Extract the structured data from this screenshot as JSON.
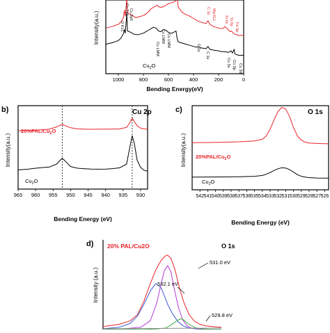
{
  "figure": {
    "panel_b_letter": "b)",
    "panel_c_letter": "c)",
    "panel_d_letter": "d)"
  },
  "chart_data": [
    {
      "panel": "a",
      "type": "line",
      "xlabel": "Bending Energy(eV)",
      "ylabel": "Intensity(a.u.)",
      "xlim": [
        1100,
        0
      ],
      "xticks": [
        1000,
        800,
        600,
        400,
        200,
        0
      ],
      "x_reversed": true,
      "series": [
        {
          "name": "",
          "color": "#e8232a",
          "x": [
            1100,
            1050,
            1000,
            980,
            960,
            952,
            945,
            932,
            928,
            900,
            880,
            860,
            840,
            800,
            780,
            760,
            740,
            720,
            700,
            690,
            680,
            660,
            640,
            620,
            600,
            580,
            560,
            540,
            531,
            525,
            520,
            500,
            480,
            460,
            440,
            420,
            400,
            380,
            360,
            340,
            300,
            285,
            270,
            240,
            200,
            180,
            160,
            150,
            130,
            120,
            110,
            100,
            80,
            75,
            60,
            40,
            20,
            10,
            0
          ],
          "y": [
            0.62,
            0.64,
            0.67,
            0.7,
            0.76,
            0.86,
            0.78,
            1.02,
            0.83,
            0.8,
            0.78,
            0.76,
            0.77,
            0.79,
            0.81,
            0.84,
            0.88,
            0.9,
            0.92,
            0.93,
            0.91,
            0.9,
            0.91,
            0.93,
            0.95,
            0.96,
            0.97,
            0.99,
            1.1,
            0.94,
            0.9,
            0.85,
            0.82,
            0.8,
            0.79,
            0.77,
            0.75,
            0.73,
            0.71,
            0.7,
            0.68,
            0.72,
            0.67,
            0.64,
            0.62,
            0.61,
            0.62,
            0.64,
            0.61,
            0.59,
            0.57,
            0.58,
            0.55,
            0.54,
            0.53,
            0.52,
            0.52,
            0.52,
            0.52
          ]
        },
        {
          "name": "",
          "color": "#000000",
          "x": [
            1100,
            1050,
            1000,
            980,
            960,
            952,
            945,
            932,
            928,
            900,
            880,
            860,
            840,
            800,
            780,
            760,
            740,
            720,
            700,
            690,
            680,
            660,
            640,
            620,
            600,
            580,
            570,
            560,
            540,
            531,
            525,
            520,
            500,
            480,
            460,
            440,
            420,
            400,
            380,
            360,
            340,
            300,
            285,
            270,
            240,
            200,
            180,
            160,
            120,
            100,
            90,
            76,
            70,
            60,
            40,
            20,
            10,
            0
          ],
          "y": [
            0.4,
            0.42,
            0.45,
            0.48,
            0.54,
            0.6,
            0.55,
            0.82,
            0.58,
            0.56,
            0.54,
            0.53,
            0.53,
            0.55,
            0.57,
            0.59,
            0.61,
            0.63,
            0.62,
            0.6,
            0.58,
            0.57,
            0.6,
            0.59,
            0.56,
            0.55,
            0.55,
            0.56,
            0.58,
            0.48,
            0.44,
            0.43,
            0.42,
            0.41,
            0.4,
            0.39,
            0.38,
            0.37,
            0.36,
            0.36,
            0.35,
            0.34,
            0.37,
            0.33,
            0.32,
            0.31,
            0.3,
            0.3,
            0.29,
            0.31,
            0.28,
            0.33,
            0.27,
            0.26,
            0.25,
            0.25,
            0.25,
            0.25
          ]
        }
      ],
      "annotations": {
        "red": [
          "Mg KLL",
          "C 1s",
          "Si 2s",
          "Si 2p",
          "Fe 3p"
        ],
        "black": [
          "O KLL",
          "Cu 2p1",
          "Cu 2p3",
          "Cu LMM",
          "Cu LMM",
          "Cu LMM",
          "O 1s",
          "C 1s",
          "Cu 3s",
          "Cu 3p",
          "Cu 3d"
        ]
      },
      "series_labels": [
        "Cu2O"
      ]
    },
    {
      "panel": "b",
      "type": "line",
      "title": "Cu 2p",
      "xlabel": "Bending Energy (eV)",
      "ylabel": "Intensity(a.u.)",
      "xlim": [
        965,
        928
      ],
      "xticks": [
        965,
        960,
        955,
        950,
        945,
        940,
        935,
        930
      ],
      "x_reversed": true,
      "reference_lines": [
        952.4,
        932.4
      ],
      "series_labels": [
        "20%PAL/Cu2O",
        "Cu2O"
      ],
      "series": [
        {
          "name": "20%PAL/Cu2O",
          "color": "#e8232a",
          "x": [
            965,
            962,
            960,
            958,
            956,
            954,
            953,
            952.4,
            951.5,
            950,
            948,
            946,
            944,
            942,
            940,
            938,
            936,
            934,
            933,
            932.4,
            931.8,
            931,
            930,
            929,
            928
          ],
          "y": [
            0.7,
            0.702,
            0.705,
            0.71,
            0.72,
            0.745,
            0.765,
            0.775,
            0.76,
            0.735,
            0.722,
            0.718,
            0.717,
            0.718,
            0.719,
            0.72,
            0.722,
            0.74,
            0.8,
            0.85,
            0.81,
            0.76,
            0.73,
            0.722,
            0.72
          ]
        },
        {
          "name": "Cu2O",
          "color": "#000000",
          "x": [
            965,
            962,
            960,
            958,
            956,
            954,
            953,
            952.4,
            951.5,
            950,
            948,
            946,
            944,
            942,
            940,
            938,
            936,
            934,
            933,
            932.4,
            931.8,
            931,
            930,
            929,
            928
          ],
          "y": [
            0.23,
            0.24,
            0.25,
            0.258,
            0.265,
            0.3,
            0.345,
            0.37,
            0.335,
            0.27,
            0.25,
            0.244,
            0.24,
            0.238,
            0.24,
            0.245,
            0.255,
            0.3,
            0.52,
            0.64,
            0.55,
            0.35,
            0.26,
            0.225,
            0.215
          ]
        }
      ]
    },
    {
      "panel": "c",
      "type": "line",
      "title": "O 1s",
      "xlabel": "Bending Energy (eV)",
      "ylabel": "Intensity(a.u.)",
      "xlim": [
        543,
        525.5
      ],
      "xticks": [
        542,
        541,
        540,
        539,
        538,
        537,
        536,
        535,
        534,
        533,
        532,
        531,
        530,
        529,
        528,
        527,
        526
      ],
      "x_reversed": true,
      "series_labels": [
        "20%PAL/Cu2O",
        "Cu2O"
      ],
      "series": [
        {
          "name": "20%PAL/Cu2O",
          "color": "#e8232a",
          "x": [
            543,
            541,
            539,
            537,
            535,
            534,
            533.5,
            533,
            532.5,
            532,
            531.5,
            531,
            530.5,
            530,
            529.5,
            529,
            528.5,
            528,
            527,
            526,
            525.5
          ],
          "y": [
            0.56,
            0.562,
            0.565,
            0.57,
            0.58,
            0.6,
            0.64,
            0.72,
            0.83,
            0.93,
            0.98,
            0.96,
            0.87,
            0.74,
            0.64,
            0.59,
            0.565,
            0.555,
            0.55,
            0.548,
            0.548
          ]
        },
        {
          "name": "Cu2O",
          "color": "#000000",
          "x": [
            543,
            541,
            539,
            537,
            535,
            534,
            533.5,
            533,
            532.5,
            532,
            531.5,
            531,
            530.5,
            530,
            529.5,
            529,
            528.5,
            528,
            527,
            526,
            525.5
          ],
          "y": [
            0.15,
            0.152,
            0.153,
            0.155,
            0.16,
            0.17,
            0.185,
            0.205,
            0.23,
            0.25,
            0.262,
            0.258,
            0.24,
            0.21,
            0.18,
            0.16,
            0.15,
            0.145,
            0.14,
            0.138,
            0.138
          ]
        }
      ]
    },
    {
      "panel": "d",
      "type": "line",
      "title": "O 1s",
      "ylabel": "Intensity (a.u.)",
      "xlim": [
        537,
        526
      ],
      "x_reversed": true,
      "sample_label": "20% PAL/Cu2O",
      "peak_labels": [
        "531.0 eV",
        "532.1 eV",
        "529.8 eV"
      ],
      "series": [
        {
          "name": "",
          "color": "#e8232a",
          "x": [
            537,
            535.5,
            534.5,
            533.8,
            533.2,
            532.6,
            532.1,
            531.6,
            531.2,
            531.0,
            530.7,
            530.3,
            529.9,
            529.5,
            529.0,
            528.5,
            528.0,
            527.5,
            526.5,
            526
          ],
          "y": [
            0.04,
            0.07,
            0.115,
            0.2,
            0.38,
            0.62,
            0.8,
            0.93,
            0.99,
            1.0,
            0.96,
            0.8,
            0.56,
            0.37,
            0.2,
            0.11,
            0.07,
            0.05,
            0.035,
            0.03
          ]
        },
        {
          "name": "",
          "color": "#3b5bd4",
          "x": [
            537,
            535.5,
            534.5,
            533.8,
            533.2,
            532.6,
            532.1,
            531.6,
            531.2,
            531.0,
            530.5,
            530.0,
            529.5,
            529.0,
            528.5,
            528.0,
            527.0,
            526
          ],
          "y": [
            0.01,
            0.03,
            0.08,
            0.18,
            0.34,
            0.52,
            0.62,
            0.56,
            0.42,
            0.34,
            0.2,
            0.1,
            0.045,
            0.02,
            0.01,
            0.005,
            0.003,
            0.002
          ]
        },
        {
          "name": "",
          "color": "#b03ad6",
          "x": [
            537,
            535,
            533.5,
            532.6,
            532.0,
            531.6,
            531.3,
            531.0,
            530.7,
            530.4,
            530.0,
            529.6,
            529.2,
            528.8,
            528.0,
            527,
            526
          ],
          "y": [
            0.005,
            0.01,
            0.03,
            0.12,
            0.36,
            0.62,
            0.79,
            0.86,
            0.78,
            0.56,
            0.3,
            0.13,
            0.05,
            0.02,
            0.008,
            0.003,
            0.002
          ]
        },
        {
          "name": "",
          "color": "#3fa83f",
          "x": [
            537,
            533,
            532,
            531.2,
            530.8,
            530.4,
            530.0,
            529.8,
            529.5,
            529.2,
            528.8,
            528.4,
            528.0,
            527,
            526
          ],
          "y": [
            0.002,
            0.003,
            0.008,
            0.02,
            0.05,
            0.09,
            0.13,
            0.145,
            0.13,
            0.09,
            0.05,
            0.025,
            0.01,
            0.004,
            0.002
          ]
        },
        {
          "name": "",
          "color": "#8a8a8a",
          "x": [
            537,
            534,
            532,
            530,
            528,
            526
          ],
          "y": [
            0.01,
            0.012,
            0.014,
            0.016,
            0.018,
            0.02
          ]
        }
      ]
    }
  ]
}
